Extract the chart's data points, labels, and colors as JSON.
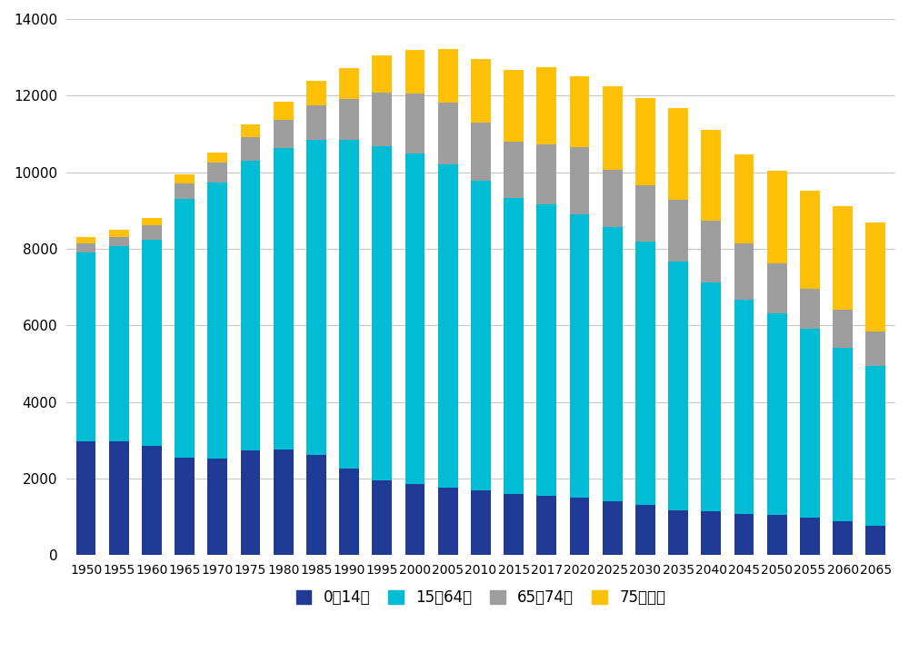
{
  "years": [
    1950,
    1955,
    1960,
    1965,
    1970,
    1975,
    1980,
    1985,
    1990,
    1995,
    2000,
    2005,
    2010,
    2015,
    2017,
    2020,
    2025,
    2030,
    2035,
    2040,
    2045,
    2050,
    2055,
    2060,
    2065
  ],
  "age0_14": [
    2979,
    2979,
    2843,
    2553,
    2515,
    2723,
    2751,
    2603,
    2249,
    1951,
    1847,
    1752,
    1684,
    1595,
    1559,
    1503,
    1407,
    1321,
    1173,
    1141,
    1073,
    1040,
    974,
    886,
    757
  ],
  "age15_64": [
    4930,
    5094,
    5398,
    6744,
    7212,
    7581,
    7883,
    8251,
    8590,
    8726,
    8638,
    8442,
    8103,
    7728,
    7596,
    7406,
    7170,
    6875,
    6494,
    5978,
    5597,
    5275,
    4930,
    4529,
    4183
  ],
  "age65_74": [
    241,
    241,
    370,
    416,
    514,
    602,
    739,
    892,
    1072,
    1395,
    1560,
    1627,
    1517,
    1479,
    1572,
    1747,
    1497,
    1452,
    1611,
    1615,
    1466,
    1308,
    1051,
    985,
    898
  ],
  "age75plus": [
    149,
    176,
    198,
    224,
    271,
    351,
    472,
    639,
    800,
    968,
    1155,
    1387,
    1643,
    1870,
    2012,
    1861,
    2180,
    2278,
    2401,
    2367,
    2319,
    2407,
    2551,
    2720,
    2837
  ],
  "colors": {
    "age0_14": "#1f3b96",
    "age15_64": "#00bcd4",
    "age65_74": "#9e9e9e",
    "age75plus": "#ffc107"
  },
  "legend_labels": [
    "0～14歳",
    "15～64歳",
    "65～74歳",
    "75歳以上"
  ],
  "ylim": [
    0,
    14000
  ],
  "yticks": [
    0,
    2000,
    4000,
    6000,
    8000,
    10000,
    12000,
    14000
  ],
  "background_color": "#ffffff",
  "grid_color": "#c8c8c8"
}
